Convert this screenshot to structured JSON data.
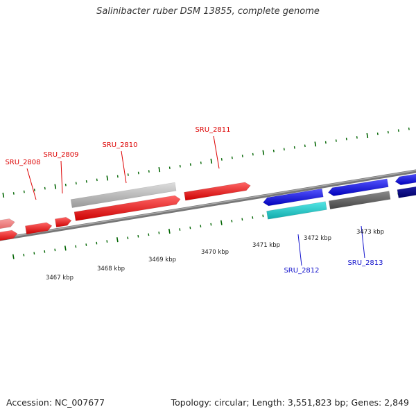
{
  "title": "Salinibacter ruber DSM 13855, complete genome",
  "footer": {
    "accession": "Accession: NC_007677",
    "summary": "Topology: circular; Length: 3,551,823 bp; Genes: 2,849"
  },
  "colors": {
    "forward_gene": "#ff0000",
    "forward_gene_light": "#f08080",
    "reverse_gene": "#0000ee",
    "reverse_gene_dark": "#000080",
    "rna_cyan": "#22cccc",
    "gray_feature": "#bbbbbb",
    "dark_gray_feature": "#666666",
    "tick": "#006400",
    "backbone": "#777777"
  },
  "tick_labels": [
    "3467 kbp",
    "3468 kbp",
    "3469 kbp",
    "3470 kbp",
    "3471 kbp",
    "3472 kbp",
    "3473 kbp"
  ],
  "gene_labels": [
    {
      "text": "SRU_2808",
      "strand": "forward"
    },
    {
      "text": "SRU_2809",
      "strand": "forward"
    },
    {
      "text": "SRU_2810",
      "strand": "forward"
    },
    {
      "text": "SRU_2811",
      "strand": "forward"
    },
    {
      "text": "SRU_2812",
      "strand": "reverse"
    },
    {
      "text": "SRU_2813",
      "strand": "reverse"
    }
  ]
}
